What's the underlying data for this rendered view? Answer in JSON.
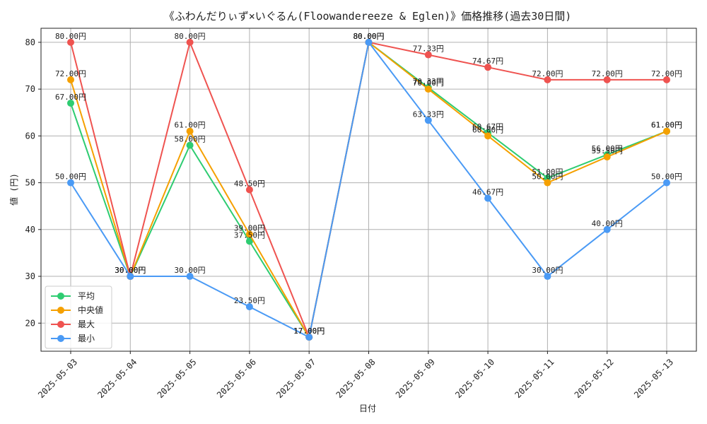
{
  "chart_data": {
    "type": "line",
    "title": "《ふわんだりぃず×いぐるん(Floowandereeze & Eglen)》価格推移(過去30日間)",
    "xlabel": "日付",
    "ylabel": "値 (円)",
    "ylim": [
      14,
      83
    ],
    "yticks": [
      20,
      30,
      40,
      50,
      60,
      70,
      80
    ],
    "grid": true,
    "legend_position": "bottom-left",
    "label_suffix": "円",
    "categories": [
      "2025-05-03",
      "2025-05-04",
      "2025-05-05",
      "2025-05-06",
      "2025-05-07",
      "2025-05-08",
      "2025-05-09",
      "2025-05-10",
      "2025-05-11",
      "2025-05-12",
      "2025-05-13"
    ],
    "series": [
      {
        "name": "平均",
        "color": "#2ecc71",
        "values": [
          67.0,
          30.0,
          58.0,
          37.5,
          17.0,
          80.0,
          70.33,
          60.67,
          51.0,
          56.0,
          61.0
        ]
      },
      {
        "name": "中央値",
        "color": "#f5a000",
        "values": [
          72.0,
          30.0,
          61.0,
          39.0,
          17.0,
          80.0,
          70.0,
          60.0,
          50.0,
          55.5,
          61.0
        ]
      },
      {
        "name": "最大",
        "color": "#ef5350",
        "values": [
          80.0,
          30.0,
          80.0,
          48.5,
          17.0,
          80.0,
          77.33,
          74.67,
          72.0,
          72.0,
          72.0
        ]
      },
      {
        "name": "最小",
        "color": "#4a9af5",
        "values": [
          50.0,
          30.0,
          30.0,
          23.5,
          17.0,
          80.0,
          63.33,
          46.67,
          30.0,
          40.0,
          50.0
        ]
      }
    ]
  }
}
